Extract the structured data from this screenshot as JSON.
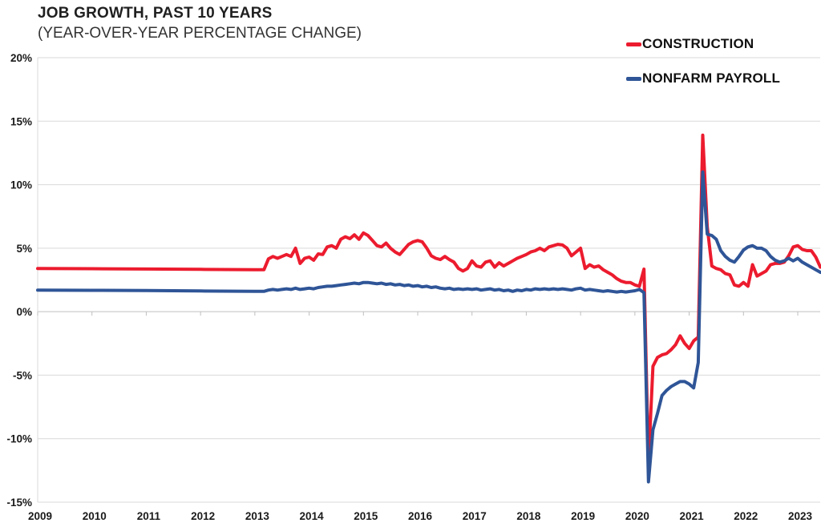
{
  "header": {
    "title": "JOB GROWTH, PAST 10 YEARS",
    "subtitle": "(YEAR-OVER-YEAR PERCENTAGE CHANGE)"
  },
  "colors": {
    "construction_red": "#EC1B2E",
    "nonfarm_blue": "#2F5597",
    "gridline": "#D9D9D9",
    "zero_axis": "#BFBFBF",
    "tick_text": "#1A1A1A"
  },
  "chart_data": {
    "type": "line",
    "title": "JOB GROWTH, PAST 10 YEARS",
    "subtitle": "(YEAR-OVER-YEAR PERCENTAGE CHANGE)",
    "xlabel": "",
    "ylabel": "",
    "xlim": [
      2009,
      2023.45
    ],
    "ylim": [
      -15,
      20
    ],
    "grid": true,
    "legend_position": "top-right",
    "y_ticks": [
      20,
      15,
      10,
      5,
      0,
      -5,
      -10,
      -15
    ],
    "y_tick_labels": [
      "20%",
      "15%",
      "10%",
      "5%",
      "0%",
      "-5%",
      "-10%",
      "-15%"
    ],
    "x_tick_labels": [
      "2009",
      "2010",
      "2011",
      "2012",
      "2013",
      "2014",
      "2015",
      "2016",
      "2017",
      "2018",
      "2019",
      "2020",
      "2021",
      "2022",
      "2023"
    ],
    "series": [
      {
        "name": "CONSTRUCTION",
        "color": "#EC1B2E",
        "points": [
          [
            2009.0,
            3.4
          ],
          [
            2010.0,
            3.38
          ],
          [
            2011.0,
            3.36
          ],
          [
            2012.0,
            3.33
          ],
          [
            2013.0,
            3.3
          ],
          [
            2013.167,
            3.3
          ],
          [
            2013.25,
            4.15
          ],
          [
            2013.333,
            4.35
          ],
          [
            2013.417,
            4.2
          ],
          [
            2013.5,
            4.35
          ],
          [
            2013.583,
            4.5
          ],
          [
            2013.667,
            4.35
          ],
          [
            2013.75,
            5.0
          ],
          [
            2013.833,
            3.8
          ],
          [
            2013.917,
            4.2
          ],
          [
            2014.0,
            4.3
          ],
          [
            2014.083,
            4.05
          ],
          [
            2014.167,
            4.55
          ],
          [
            2014.25,
            4.5
          ],
          [
            2014.333,
            5.1
          ],
          [
            2014.417,
            5.2
          ],
          [
            2014.5,
            5.0
          ],
          [
            2014.583,
            5.7
          ],
          [
            2014.667,
            5.9
          ],
          [
            2014.75,
            5.75
          ],
          [
            2014.833,
            6.05
          ],
          [
            2014.917,
            5.7
          ],
          [
            2015.0,
            6.2
          ],
          [
            2015.083,
            6.0
          ],
          [
            2015.167,
            5.6
          ],
          [
            2015.25,
            5.2
          ],
          [
            2015.333,
            5.1
          ],
          [
            2015.417,
            5.4
          ],
          [
            2015.5,
            5.0
          ],
          [
            2015.583,
            4.7
          ],
          [
            2015.667,
            4.5
          ],
          [
            2015.75,
            4.9
          ],
          [
            2015.833,
            5.3
          ],
          [
            2015.917,
            5.5
          ],
          [
            2016.0,
            5.6
          ],
          [
            2016.083,
            5.5
          ],
          [
            2016.167,
            5.0
          ],
          [
            2016.25,
            4.4
          ],
          [
            2016.333,
            4.2
          ],
          [
            2016.417,
            4.1
          ],
          [
            2016.5,
            4.35
          ],
          [
            2016.583,
            4.1
          ],
          [
            2016.667,
            3.9
          ],
          [
            2016.75,
            3.4
          ],
          [
            2016.833,
            3.2
          ],
          [
            2016.917,
            3.4
          ],
          [
            2017.0,
            4.0
          ],
          [
            2017.083,
            3.6
          ],
          [
            2017.167,
            3.5
          ],
          [
            2017.25,
            3.9
          ],
          [
            2017.333,
            4.0
          ],
          [
            2017.417,
            3.5
          ],
          [
            2017.5,
            3.85
          ],
          [
            2017.583,
            3.6
          ],
          [
            2017.667,
            3.8
          ],
          [
            2017.75,
            4.0
          ],
          [
            2017.833,
            4.2
          ],
          [
            2017.917,
            4.35
          ],
          [
            2018.0,
            4.5
          ],
          [
            2018.083,
            4.7
          ],
          [
            2018.167,
            4.8
          ],
          [
            2018.25,
            5.0
          ],
          [
            2018.333,
            4.8
          ],
          [
            2018.417,
            5.1
          ],
          [
            2018.5,
            5.2
          ],
          [
            2018.583,
            5.3
          ],
          [
            2018.667,
            5.25
          ],
          [
            2018.75,
            5.0
          ],
          [
            2018.833,
            4.4
          ],
          [
            2018.917,
            4.7
          ],
          [
            2019.0,
            5.0
          ],
          [
            2019.083,
            3.4
          ],
          [
            2019.167,
            3.7
          ],
          [
            2019.25,
            3.5
          ],
          [
            2019.333,
            3.6
          ],
          [
            2019.417,
            3.3
          ],
          [
            2019.5,
            3.1
          ],
          [
            2019.583,
            2.9
          ],
          [
            2019.667,
            2.6
          ],
          [
            2019.75,
            2.4
          ],
          [
            2019.833,
            2.3
          ],
          [
            2019.917,
            2.3
          ],
          [
            2020.0,
            2.1
          ],
          [
            2020.083,
            2.0
          ],
          [
            2020.167,
            3.35
          ],
          [
            2020.25,
            -11.9
          ],
          [
            2020.333,
            -4.3
          ],
          [
            2020.417,
            -3.6
          ],
          [
            2020.5,
            -3.4
          ],
          [
            2020.583,
            -3.3
          ],
          [
            2020.667,
            -3.0
          ],
          [
            2020.75,
            -2.6
          ],
          [
            2020.833,
            -1.9
          ],
          [
            2020.917,
            -2.5
          ],
          [
            2021.0,
            -2.9
          ],
          [
            2021.083,
            -2.3
          ],
          [
            2021.167,
            -2.0
          ],
          [
            2021.25,
            13.9
          ],
          [
            2021.333,
            6.7
          ],
          [
            2021.417,
            3.6
          ],
          [
            2021.5,
            3.4
          ],
          [
            2021.583,
            3.3
          ],
          [
            2021.667,
            3.0
          ],
          [
            2021.75,
            2.9
          ],
          [
            2021.833,
            2.1
          ],
          [
            2021.917,
            2.0
          ],
          [
            2022.0,
            2.3
          ],
          [
            2022.083,
            2.0
          ],
          [
            2022.167,
            3.7
          ],
          [
            2022.25,
            2.8
          ],
          [
            2022.333,
            3.0
          ],
          [
            2022.417,
            3.2
          ],
          [
            2022.5,
            3.7
          ],
          [
            2022.583,
            3.8
          ],
          [
            2022.667,
            3.8
          ],
          [
            2022.75,
            3.9
          ],
          [
            2022.833,
            4.4
          ],
          [
            2022.917,
            5.1
          ],
          [
            2023.0,
            5.2
          ],
          [
            2023.083,
            4.9
          ],
          [
            2023.167,
            4.8
          ],
          [
            2023.25,
            4.8
          ],
          [
            2023.333,
            4.3
          ],
          [
            2023.417,
            3.5
          ]
        ]
      },
      {
        "name": "NONFARM PAYROLL",
        "color": "#2F5597",
        "points": [
          [
            2009.0,
            1.7
          ],
          [
            2010.0,
            1.68
          ],
          [
            2011.0,
            1.66
          ],
          [
            2012.0,
            1.63
          ],
          [
            2013.0,
            1.6
          ],
          [
            2013.167,
            1.6
          ],
          [
            2013.25,
            1.7
          ],
          [
            2013.333,
            1.75
          ],
          [
            2013.417,
            1.7
          ],
          [
            2013.5,
            1.75
          ],
          [
            2013.583,
            1.8
          ],
          [
            2013.667,
            1.75
          ],
          [
            2013.75,
            1.85
          ],
          [
            2013.833,
            1.75
          ],
          [
            2013.917,
            1.8
          ],
          [
            2014.0,
            1.85
          ],
          [
            2014.083,
            1.8
          ],
          [
            2014.167,
            1.9
          ],
          [
            2014.25,
            1.95
          ],
          [
            2014.333,
            2.0
          ],
          [
            2014.417,
            2.0
          ],
          [
            2014.5,
            2.05
          ],
          [
            2014.583,
            2.1
          ],
          [
            2014.667,
            2.15
          ],
          [
            2014.75,
            2.2
          ],
          [
            2014.833,
            2.25
          ],
          [
            2014.917,
            2.2
          ],
          [
            2015.0,
            2.3
          ],
          [
            2015.083,
            2.3
          ],
          [
            2015.167,
            2.25
          ],
          [
            2015.25,
            2.2
          ],
          [
            2015.333,
            2.25
          ],
          [
            2015.417,
            2.15
          ],
          [
            2015.5,
            2.2
          ],
          [
            2015.583,
            2.1
          ],
          [
            2015.667,
            2.15
          ],
          [
            2015.75,
            2.05
          ],
          [
            2015.833,
            2.1
          ],
          [
            2015.917,
            2.0
          ],
          [
            2016.0,
            2.05
          ],
          [
            2016.083,
            1.95
          ],
          [
            2016.167,
            2.0
          ],
          [
            2016.25,
            1.9
          ],
          [
            2016.333,
            1.95
          ],
          [
            2016.417,
            1.85
          ],
          [
            2016.5,
            1.8
          ],
          [
            2016.583,
            1.85
          ],
          [
            2016.667,
            1.75
          ],
          [
            2016.75,
            1.8
          ],
          [
            2016.833,
            1.75
          ],
          [
            2016.917,
            1.8
          ],
          [
            2017.0,
            1.75
          ],
          [
            2017.083,
            1.8
          ],
          [
            2017.167,
            1.7
          ],
          [
            2017.25,
            1.75
          ],
          [
            2017.333,
            1.8
          ],
          [
            2017.417,
            1.7
          ],
          [
            2017.5,
            1.75
          ],
          [
            2017.583,
            1.65
          ],
          [
            2017.667,
            1.7
          ],
          [
            2017.75,
            1.6
          ],
          [
            2017.833,
            1.7
          ],
          [
            2017.917,
            1.65
          ],
          [
            2018.0,
            1.75
          ],
          [
            2018.083,
            1.7
          ],
          [
            2018.167,
            1.8
          ],
          [
            2018.25,
            1.75
          ],
          [
            2018.333,
            1.8
          ],
          [
            2018.417,
            1.75
          ],
          [
            2018.5,
            1.8
          ],
          [
            2018.583,
            1.75
          ],
          [
            2018.667,
            1.8
          ],
          [
            2018.75,
            1.75
          ],
          [
            2018.833,
            1.7
          ],
          [
            2018.917,
            1.8
          ],
          [
            2019.0,
            1.85
          ],
          [
            2019.083,
            1.7
          ],
          [
            2019.167,
            1.75
          ],
          [
            2019.25,
            1.7
          ],
          [
            2019.333,
            1.65
          ],
          [
            2019.417,
            1.6
          ],
          [
            2019.5,
            1.65
          ],
          [
            2019.583,
            1.6
          ],
          [
            2019.667,
            1.55
          ],
          [
            2019.75,
            1.6
          ],
          [
            2019.833,
            1.55
          ],
          [
            2019.917,
            1.6
          ],
          [
            2020.0,
            1.65
          ],
          [
            2020.083,
            1.75
          ],
          [
            2020.167,
            1.5
          ],
          [
            2020.25,
            -13.4
          ],
          [
            2020.333,
            -9.3
          ],
          [
            2020.417,
            -8.0
          ],
          [
            2020.5,
            -6.6
          ],
          [
            2020.583,
            -6.2
          ],
          [
            2020.667,
            -5.9
          ],
          [
            2020.75,
            -5.7
          ],
          [
            2020.833,
            -5.5
          ],
          [
            2020.917,
            -5.5
          ],
          [
            2021.0,
            -5.7
          ],
          [
            2021.083,
            -6.0
          ],
          [
            2021.167,
            -4.0
          ],
          [
            2021.25,
            11.0
          ],
          [
            2021.333,
            6.1
          ],
          [
            2021.417,
            6.0
          ],
          [
            2021.5,
            5.7
          ],
          [
            2021.583,
            4.8
          ],
          [
            2021.667,
            4.35
          ],
          [
            2021.75,
            4.05
          ],
          [
            2021.833,
            3.9
          ],
          [
            2021.917,
            4.35
          ],
          [
            2022.0,
            4.85
          ],
          [
            2022.083,
            5.1
          ],
          [
            2022.167,
            5.2
          ],
          [
            2022.25,
            5.0
          ],
          [
            2022.333,
            5.0
          ],
          [
            2022.417,
            4.8
          ],
          [
            2022.5,
            4.35
          ],
          [
            2022.583,
            4.05
          ],
          [
            2022.667,
            3.9
          ],
          [
            2022.75,
            4.0
          ],
          [
            2022.833,
            4.2
          ],
          [
            2022.917,
            4.0
          ],
          [
            2023.0,
            4.2
          ],
          [
            2023.083,
            3.9
          ],
          [
            2023.167,
            3.7
          ],
          [
            2023.25,
            3.5
          ],
          [
            2023.333,
            3.3
          ],
          [
            2023.417,
            3.1
          ]
        ]
      }
    ]
  }
}
